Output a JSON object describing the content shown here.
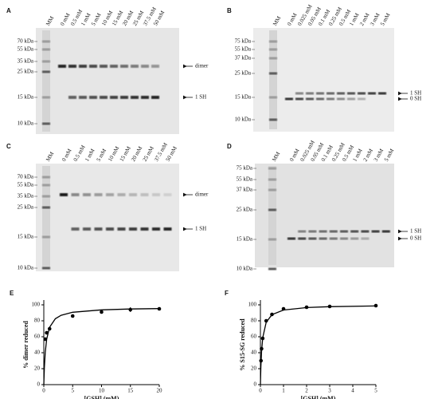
{
  "gels": [
    {
      "label": "A",
      "marker_label": "MM",
      "lanes": [
        "0 mM",
        "0.5 mM",
        "1 mM",
        "5 mM",
        "10 mM",
        "15 mM",
        "20 mM",
        "25 mM",
        "37.5 mM",
        "50 mM"
      ],
      "kda": [
        "70 kDa",
        "55 kDa",
        "35 kDa",
        "25 kDa",
        "15 kDa",
        "10 kDa"
      ],
      "annotations": [
        "dimer",
        "1 SH"
      ]
    },
    {
      "label": "B",
      "marker_label": "MM",
      "lanes": [
        "0 mM",
        "0.025 mM",
        "0.05 mM",
        "0.1 mM",
        "0.25 mM",
        "0.5 mM",
        "1 mM",
        "2 mM",
        "3 mM",
        "5 mM"
      ],
      "kda": [
        "75 kDa",
        "55 kDa",
        "37 kDa",
        "25 kDa",
        "15 kDa",
        "10 kDa"
      ],
      "annotations": [
        "1 SH",
        "0 SH"
      ]
    },
    {
      "label": "C",
      "marker_label": "MM",
      "lanes": [
        "0 mM",
        "0.5 mM",
        "1 mM",
        "5 mM",
        "10 mM",
        "15 mM",
        "20 mM",
        "25 mM",
        "37.5 mM",
        "50 mM"
      ],
      "kda": [
        "70 kDa",
        "55 kDa",
        "35 kDa",
        "25 kDa",
        "15 kDa",
        "10 kDa"
      ],
      "annotations": [
        "dimer",
        "1 SH"
      ]
    },
    {
      "label": "D",
      "marker_label": "MM",
      "lanes": [
        "0 mM",
        "0.025 mM",
        "0.05 mM",
        "0.1 mM",
        "0.25 mM",
        "0.5 mM",
        "1 mM",
        "2 mM",
        "3 mM",
        "5 mM"
      ],
      "kda": [
        "75 kDa",
        "55 kDa",
        "37 kDa",
        "25 kDa",
        "15 kDa",
        "10 kDa"
      ],
      "annotations": [
        "1 SH",
        "0 SH"
      ]
    }
  ],
  "chart_data": [
    {
      "type": "scatter",
      "label": "E",
      "xlabel": "[GSH] (mM)",
      "ylabel": "% dimer reduced",
      "x": [
        0.25,
        0.5,
        1,
        5,
        10,
        15,
        20
      ],
      "values": [
        57,
        65,
        70,
        86,
        91,
        94,
        95
      ],
      "errors": [
        2,
        2,
        2,
        1,
        2,
        3,
        2
      ],
      "fit": {
        "x": [
          0,
          0.1,
          0.25,
          0.5,
          1,
          2,
          3,
          5,
          10,
          15,
          20
        ],
        "values": [
          0,
          21.6,
          40.4,
          57,
          71.9,
          82.6,
          86.9,
          90.7,
          93.7,
          94.8,
          95.3
        ]
      },
      "xlim": [
        0,
        20
      ],
      "xticks": [
        0,
        5,
        10,
        15,
        20
      ],
      "ylim": [
        0,
        100
      ],
      "yticks": [
        0,
        20,
        40,
        60,
        80,
        100
      ]
    },
    {
      "type": "scatter",
      "label": "F",
      "xlabel": "[GSH] (mM)",
      "ylabel": "% S15-SG reduced",
      "x": [
        0.025,
        0.05,
        0.1,
        0.25,
        0.5,
        1,
        2,
        3,
        5
      ],
      "values": [
        30,
        45,
        58,
        80,
        88,
        95,
        97,
        98,
        99
      ],
      "errors": [
        2,
        2,
        2,
        2,
        1,
        1,
        1,
        1,
        1
      ],
      "fit": {
        "x": [
          0,
          0.02,
          0.05,
          0.1,
          0.25,
          0.5,
          1,
          2,
          3,
          5
        ],
        "values": [
          0,
          22.2,
          41.7,
          58.8,
          78.1,
          87.7,
          93.5,
          96.6,
          97.7,
          98.6
        ]
      },
      "xlim": [
        0,
        5
      ],
      "xticks": [
        0,
        1,
        2,
        3,
        4,
        5
      ],
      "ylim": [
        0,
        100
      ],
      "yticks": [
        0,
        20,
        40,
        60,
        80,
        100
      ]
    }
  ]
}
